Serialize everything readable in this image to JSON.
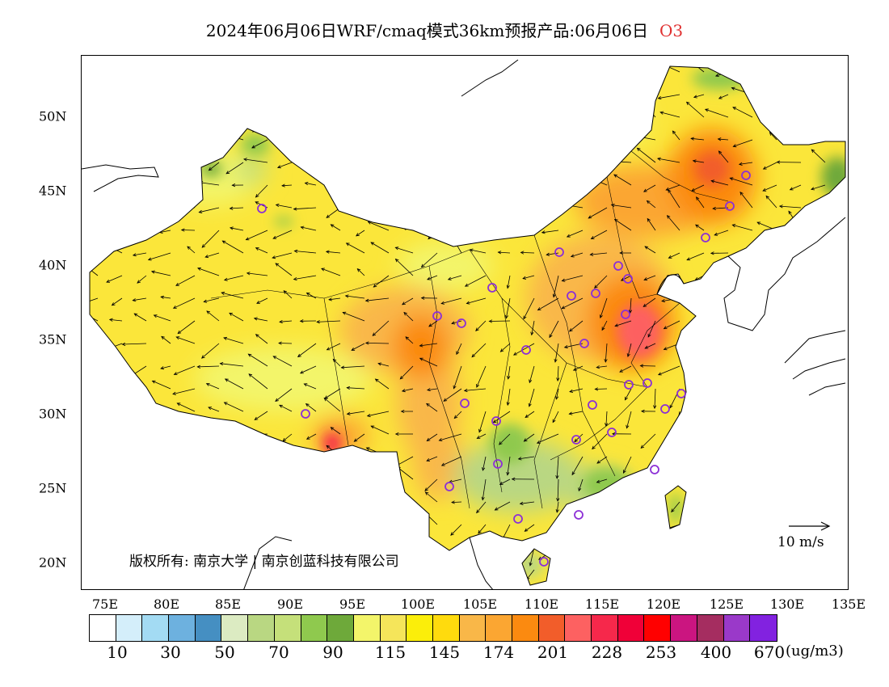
{
  "title": {
    "main": "2024年06月06日WRF/cmaq模式36km预报产品:06月06日",
    "species": "O3"
  },
  "map": {
    "lat_labels": [
      "50N",
      "45N",
      "40N",
      "35N",
      "30N",
      "25N",
      "20N"
    ],
    "lon_labels": [
      "75E",
      "80E",
      "85E",
      "90E",
      "95E",
      "100E",
      "105E",
      "110E",
      "115E",
      "120E",
      "125E",
      "130E",
      "135E"
    ],
    "copyright": "版权所有: 南京大学 | 南京创蓝科技有限公司",
    "wind_reference": "10 m/s",
    "ocean_color": "#ffffff",
    "base_color": "#fbe63a"
  },
  "legend": {
    "labels": [
      "10",
      "30",
      "50",
      "70",
      "90",
      "115",
      "145",
      "174",
      "201",
      "228",
      "253",
      "400",
      "670"
    ],
    "units": "(ug/m3)",
    "colors": [
      "#ffffff",
      "#d4eefa",
      "#a3dbf3",
      "#6db1df",
      "#458fc2",
      "#dcebc2",
      "#b9d782",
      "#c5e07a",
      "#8fc94e",
      "#6ea93a",
      "#f3f56a",
      "#f5e55a",
      "#fbee0a",
      "#ffdb0d",
      "#f9b748",
      "#fba632",
      "#fb8a10",
      "#f25d2a",
      "#fd6161",
      "#f6284b",
      "#f00038",
      "#ff0000",
      "#cb1580",
      "#a52d60",
      "#9a39c9",
      "#8222e0"
    ]
  }
}
